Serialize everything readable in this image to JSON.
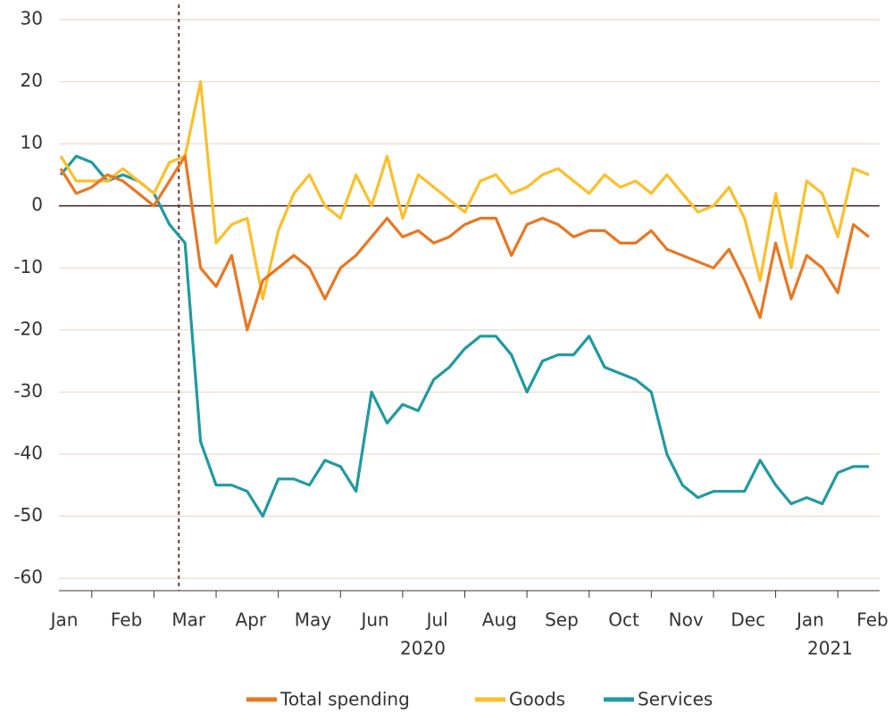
{
  "chart_data": {
    "type": "line",
    "categories": [
      "Jan",
      null,
      null,
      null,
      "Feb",
      null,
      null,
      null,
      "Mar",
      null,
      null,
      null,
      "Apr",
      null,
      null,
      null,
      "May",
      null,
      null,
      null,
      "Jun",
      null,
      null,
      null,
      "Jul",
      null,
      null,
      null,
      "Aug",
      null,
      null,
      null,
      "Sep",
      null,
      null,
      null,
      "Oct",
      null,
      null,
      null,
      "Nov",
      null,
      null,
      null,
      "Dec",
      null,
      null,
      null,
      "Jan",
      null,
      null,
      null,
      "Feb"
    ],
    "year_labels": [
      "2020",
      "2021"
    ],
    "series": [
      {
        "name": "Total spending",
        "color": "#e87722",
        "values": [
          6,
          2,
          3,
          5,
          4,
          2,
          0,
          4,
          8,
          -10,
          -13,
          -8,
          -20,
          -12,
          -10,
          -8,
          -10,
          -15,
          -10,
          -8,
          -5,
          -2,
          -5,
          -4,
          -6,
          -5,
          -3,
          -2,
          -2,
          -8,
          -3,
          -2,
          -3,
          -5,
          -4,
          -4,
          -6,
          -6,
          -4,
          -7,
          -8,
          -9,
          -10,
          -7,
          -12,
          -18,
          -6,
          -15,
          -8,
          -10,
          -14,
          -3,
          -5
        ]
      },
      {
        "name": "Goods",
        "color": "#fbbf2a",
        "values": [
          8,
          4,
          4,
          4,
          6,
          4,
          2,
          7,
          8,
          20,
          -6,
          -3,
          -2,
          -15,
          -4,
          2,
          5,
          0,
          -2,
          5,
          0,
          8,
          -2,
          5,
          3,
          1,
          -1,
          4,
          5,
          2,
          3,
          5,
          6,
          4,
          2,
          5,
          3,
          4,
          2,
          5,
          2,
          -1,
          0,
          3,
          -2,
          -12,
          2,
          -10,
          4,
          2,
          -5,
          6,
          5
        ]
      },
      {
        "name": "Services",
        "color": "#1f9aa0",
        "values": [
          5,
          8,
          7,
          4,
          5,
          4,
          2,
          -3,
          -6,
          -38,
          -45,
          -45,
          -46,
          -50,
          -44,
          -44,
          -45,
          -41,
          -42,
          -46,
          -30,
          -35,
          -32,
          -33,
          -28,
          -26,
          -23,
          -21,
          -21,
          -24,
          -30,
          -25,
          -24,
          -24,
          -21,
          -26,
          -27,
          -28,
          -30,
          -40,
          -45,
          -47,
          -46,
          -46,
          -46,
          -41,
          -45,
          -48,
          -47,
          -48,
          -43,
          -42,
          -42
        ]
      }
    ],
    "ylim": [
      -62,
      30
    ],
    "yticks": [
      -60,
      -50,
      -40,
      -30,
      -20,
      -10,
      0,
      10,
      20,
      30
    ],
    "grid": true
  }
}
